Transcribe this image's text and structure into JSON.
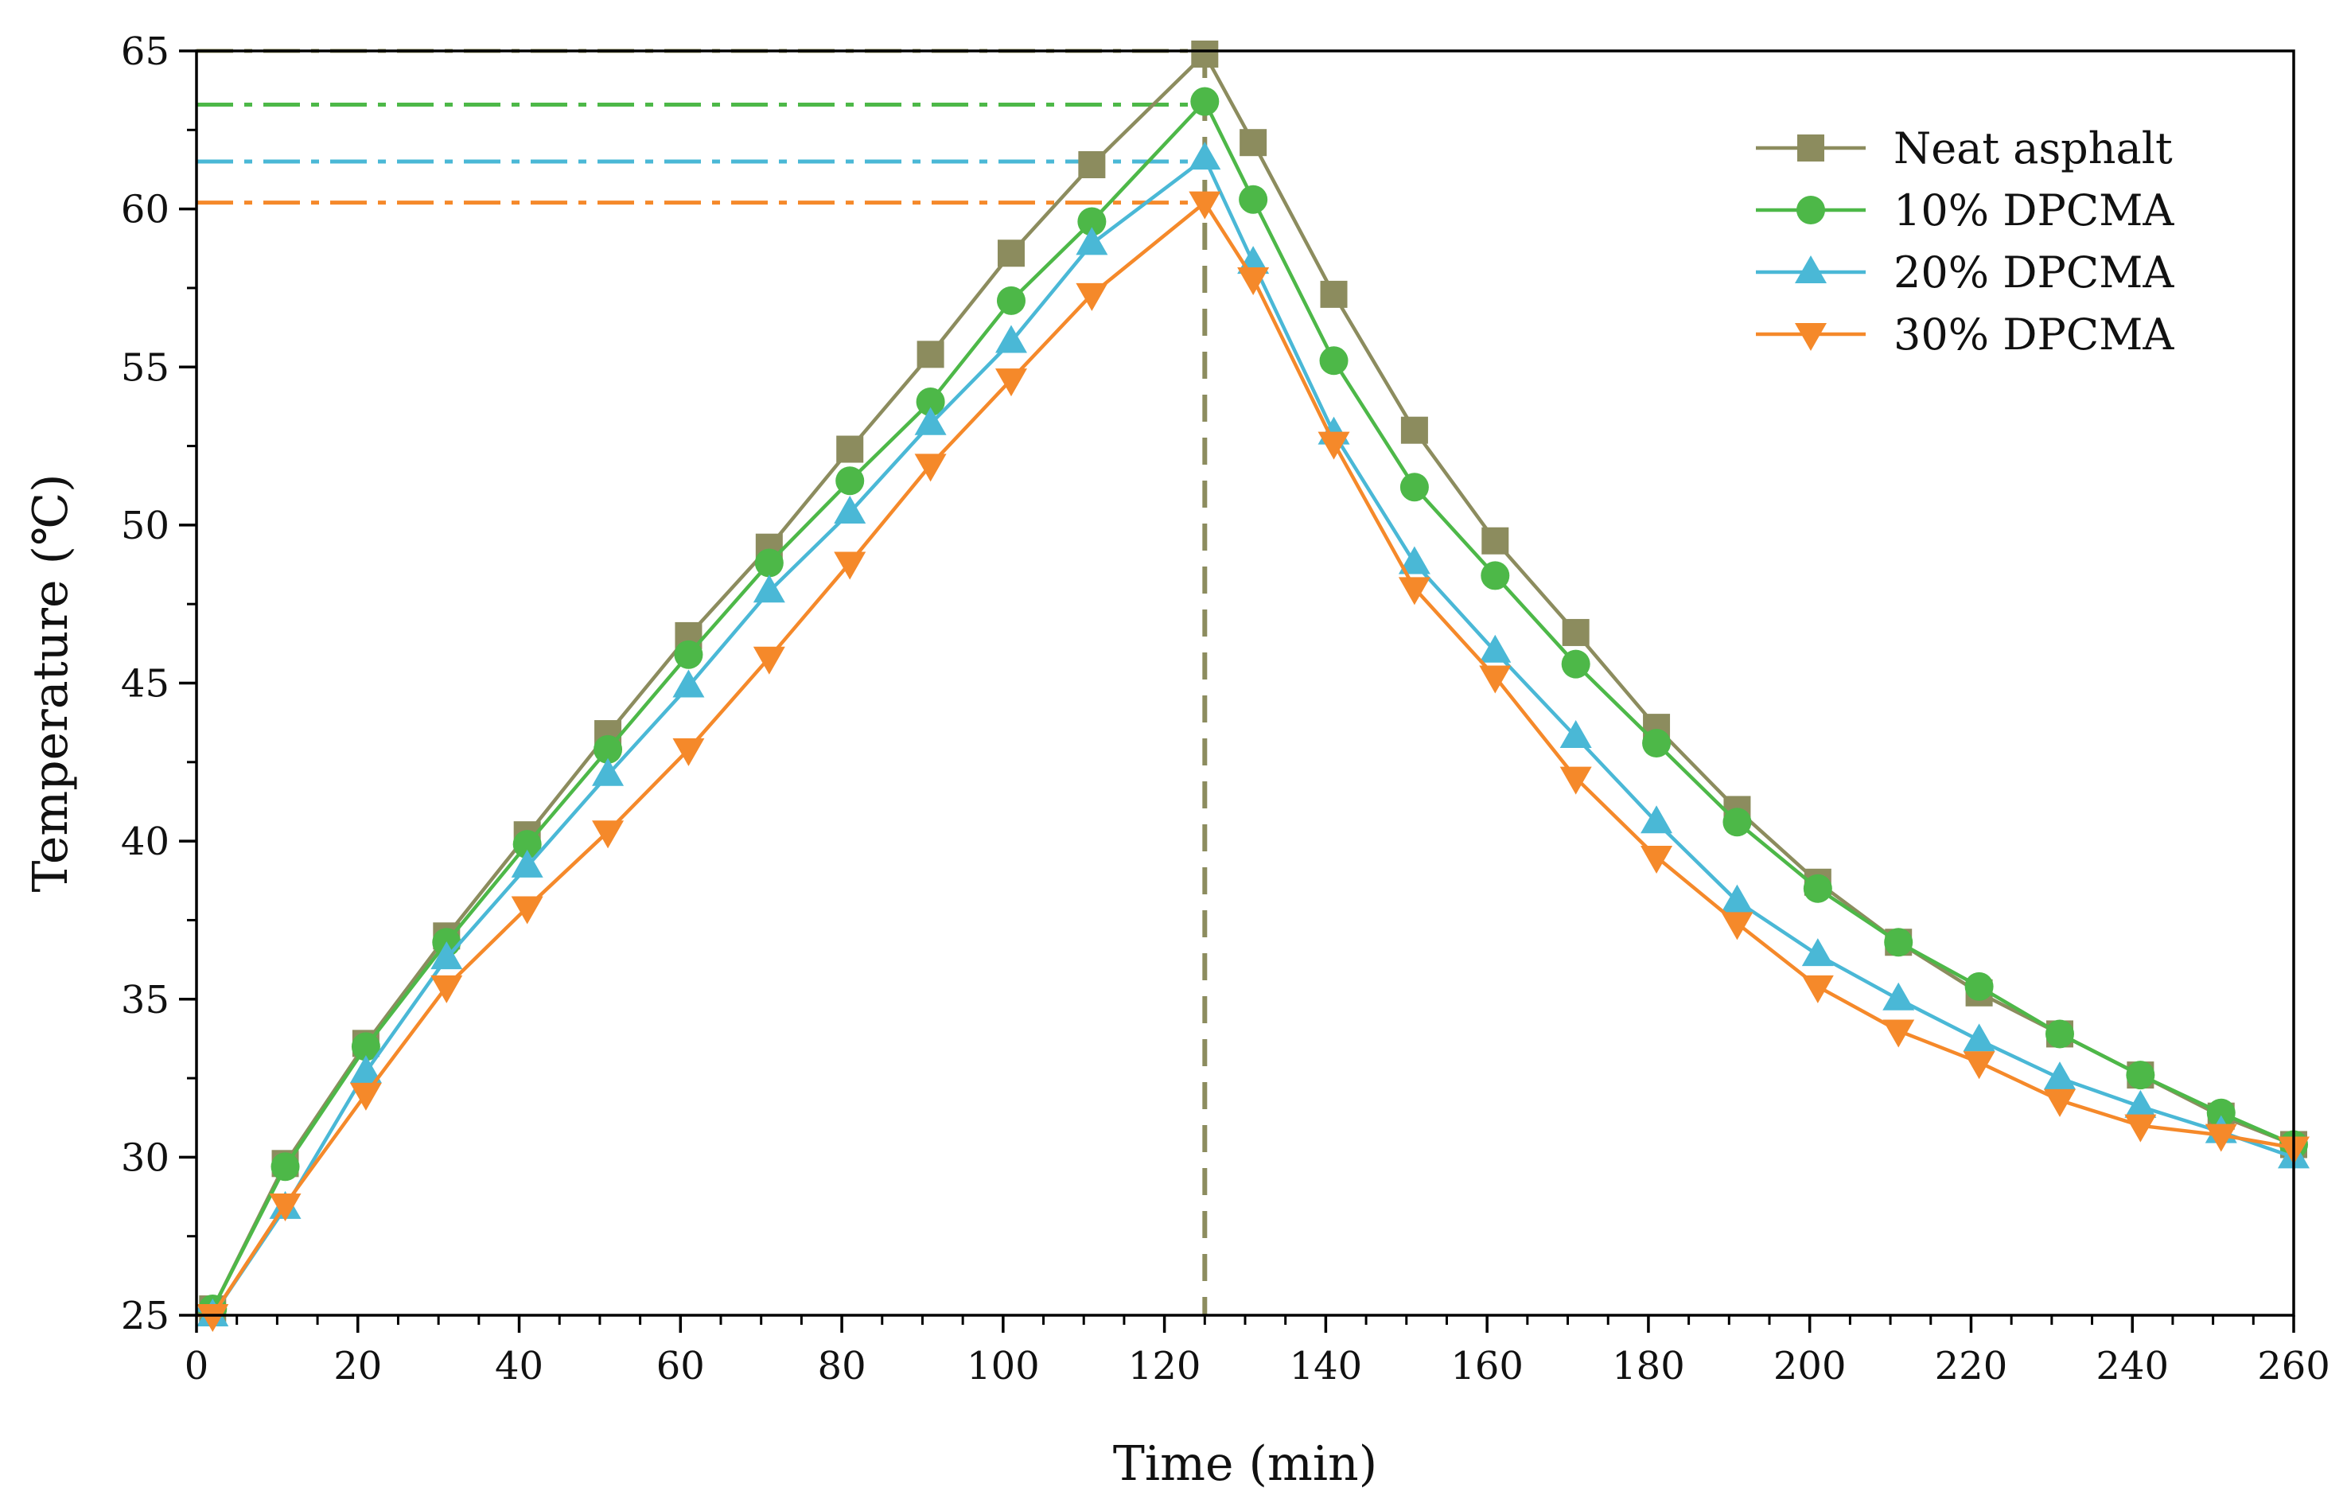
{
  "chart_data": {
    "type": "line",
    "title": "",
    "xlabel": "Time (min)",
    "ylabel": "Temperature (℃)",
    "xlim": [
      0,
      260
    ],
    "ylim": [
      25,
      65
    ],
    "xticks": [
      0,
      20,
      40,
      60,
      80,
      100,
      120,
      140,
      160,
      180,
      200,
      220,
      240,
      260
    ],
    "yticks": [
      25,
      30,
      35,
      40,
      45,
      50,
      55,
      60,
      65
    ],
    "x_minor_step": 5,
    "y_minor_step": 2.5,
    "grid": false,
    "legend_position": "top-right",
    "peak_time": 125,
    "series": [
      {
        "name": "Neat asphalt",
        "color": "#8c8c5e",
        "marker": "square",
        "peak_value": 65,
        "points": [
          [
            0,
            25.1
          ],
          [
            2,
            25.2
          ],
          [
            11,
            29.8
          ],
          [
            21,
            33.6
          ],
          [
            31,
            37.0
          ],
          [
            41,
            40.2
          ],
          [
            51,
            43.4
          ],
          [
            61,
            46.5
          ],
          [
            71,
            49.3
          ],
          [
            81,
            52.4
          ],
          [
            91,
            55.4
          ],
          [
            101,
            58.6
          ],
          [
            111,
            61.4
          ],
          [
            125,
            64.9
          ],
          [
            131,
            62.1
          ],
          [
            141,
            57.3
          ],
          [
            151,
            53.0
          ],
          [
            161,
            49.5
          ],
          [
            171,
            46.6
          ],
          [
            181,
            43.6
          ],
          [
            191,
            41.0
          ],
          [
            201,
            38.7
          ],
          [
            211,
            36.8
          ],
          [
            221,
            35.2
          ],
          [
            231,
            33.9
          ],
          [
            241,
            32.6
          ],
          [
            251,
            31.3
          ],
          [
            260,
            30.4
          ]
        ]
      },
      {
        "name": "10% DPCMA",
        "color": "#4db848",
        "marker": "circle",
        "peak_value": 63.3,
        "points": [
          [
            0,
            25.0
          ],
          [
            2,
            25.2
          ],
          [
            11,
            29.7
          ],
          [
            21,
            33.5
          ],
          [
            31,
            36.8
          ],
          [
            41,
            39.9
          ],
          [
            51,
            42.9
          ],
          [
            61,
            45.9
          ],
          [
            71,
            48.8
          ],
          [
            81,
            51.4
          ],
          [
            91,
            53.9
          ],
          [
            101,
            57.1
          ],
          [
            111,
            59.6
          ],
          [
            125,
            63.4
          ],
          [
            131,
            60.3
          ],
          [
            141,
            55.2
          ],
          [
            151,
            51.2
          ],
          [
            161,
            48.4
          ],
          [
            171,
            45.6
          ],
          [
            181,
            43.1
          ],
          [
            191,
            40.6
          ],
          [
            201,
            38.5
          ],
          [
            211,
            36.8
          ],
          [
            221,
            35.4
          ],
          [
            231,
            33.9
          ],
          [
            241,
            32.6
          ],
          [
            251,
            31.4
          ],
          [
            260,
            30.4
          ]
        ]
      },
      {
        "name": "20% DPCMA",
        "color": "#4ab8d6",
        "marker": "triangle-up",
        "peak_value": 61.5,
        "points": [
          [
            0,
            25.2
          ],
          [
            2,
            25.0
          ],
          [
            11,
            28.4
          ],
          [
            21,
            32.7
          ],
          [
            31,
            36.3
          ],
          [
            41,
            39.2
          ],
          [
            51,
            42.1
          ],
          [
            61,
            44.9
          ],
          [
            71,
            47.9
          ],
          [
            81,
            50.4
          ],
          [
            91,
            53.2
          ],
          [
            101,
            55.8
          ],
          [
            111,
            58.9
          ],
          [
            125,
            61.6
          ],
          [
            131,
            58.3
          ],
          [
            141,
            52.9
          ],
          [
            151,
            48.8
          ],
          [
            161,
            46.0
          ],
          [
            171,
            43.3
          ],
          [
            181,
            40.6
          ],
          [
            191,
            38.1
          ],
          [
            201,
            36.4
          ],
          [
            211,
            35.0
          ],
          [
            221,
            33.7
          ],
          [
            231,
            32.5
          ],
          [
            241,
            31.6
          ],
          [
            251,
            30.8
          ],
          [
            260,
            30.0
          ]
        ]
      },
      {
        "name": "30% DPCMA",
        "color": "#f5892a",
        "marker": "triangle-down",
        "peak_value": 60.2,
        "points": [
          [
            0,
            25.0
          ],
          [
            2,
            25.0
          ],
          [
            11,
            28.5
          ],
          [
            21,
            32.0
          ],
          [
            31,
            35.4
          ],
          [
            41,
            37.9
          ],
          [
            51,
            40.3
          ],
          [
            61,
            42.9
          ],
          [
            71,
            45.8
          ],
          [
            81,
            48.8
          ],
          [
            91,
            51.9
          ],
          [
            101,
            54.6
          ],
          [
            111,
            57.3
          ],
          [
            125,
            60.2
          ],
          [
            131,
            57.8
          ],
          [
            141,
            52.6
          ],
          [
            151,
            48.0
          ],
          [
            161,
            45.2
          ],
          [
            171,
            42.0
          ],
          [
            181,
            39.5
          ],
          [
            191,
            37.4
          ],
          [
            201,
            35.4
          ],
          [
            211,
            34.0
          ],
          [
            221,
            33.0
          ],
          [
            231,
            31.8
          ],
          [
            241,
            31.0
          ],
          [
            251,
            30.7
          ],
          [
            260,
            30.3
          ]
        ]
      }
    ]
  }
}
